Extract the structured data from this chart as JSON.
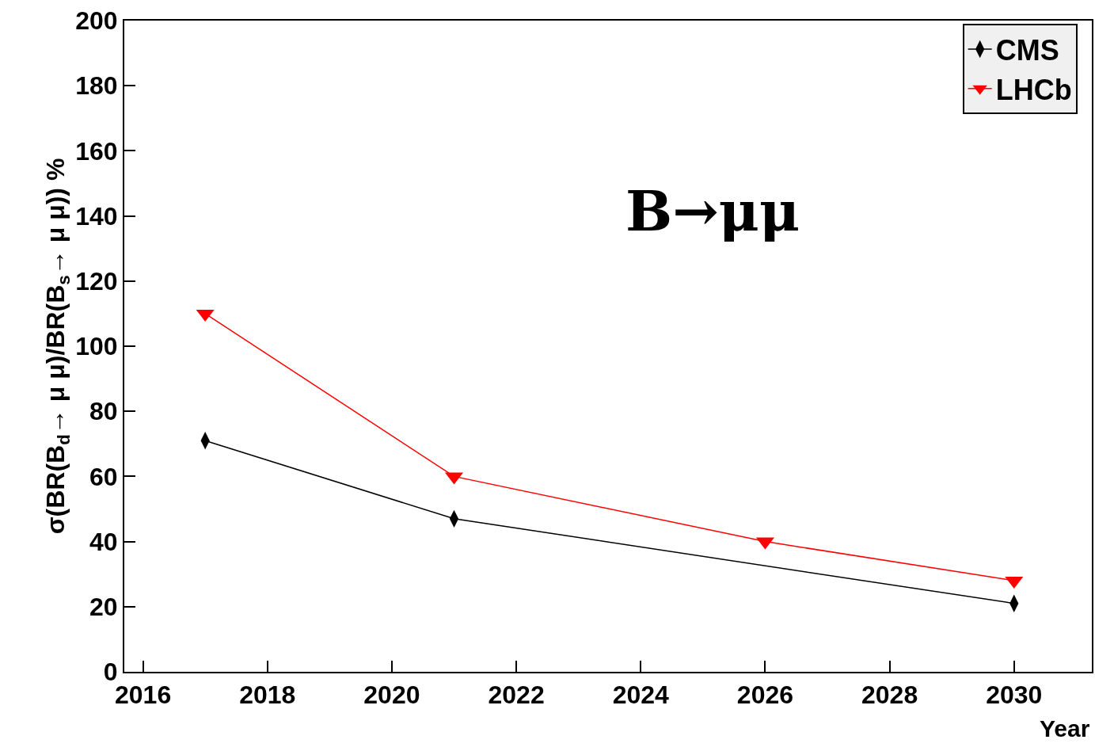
{
  "chart_data": {
    "type": "line",
    "xlabel": "Year",
    "ylabel": "σ(BR(B$_{d}$→ μ μ)/BR(B$_{s}$→ μ μ)) %",
    "annotations": [
      "B→μμ"
    ],
    "series": [
      {
        "name": "CMS",
        "color": "#000000",
        "marker": "diamond",
        "x": [
          2017,
          2021,
          2030
        ],
        "values": [
          71,
          47,
          21
        ]
      },
      {
        "name": "LHCb",
        "color": "#ff0000",
        "marker": "triangle",
        "x": [
          2017,
          2021,
          2026,
          2030
        ],
        "values": [
          110,
          60,
          40,
          28
        ]
      }
    ],
    "xlim": [
      2015.7,
      2031.25
    ],
    "xticks": [
      2016,
      2018,
      2020,
      2022,
      2024,
      2026,
      2028,
      2030
    ],
    "ylim": [
      0,
      200
    ],
    "yticks": [
      0,
      20,
      40,
      60,
      80,
      100,
      120,
      140,
      160,
      180,
      200
    ],
    "legend": "top right",
    "line_style": "solid"
  }
}
